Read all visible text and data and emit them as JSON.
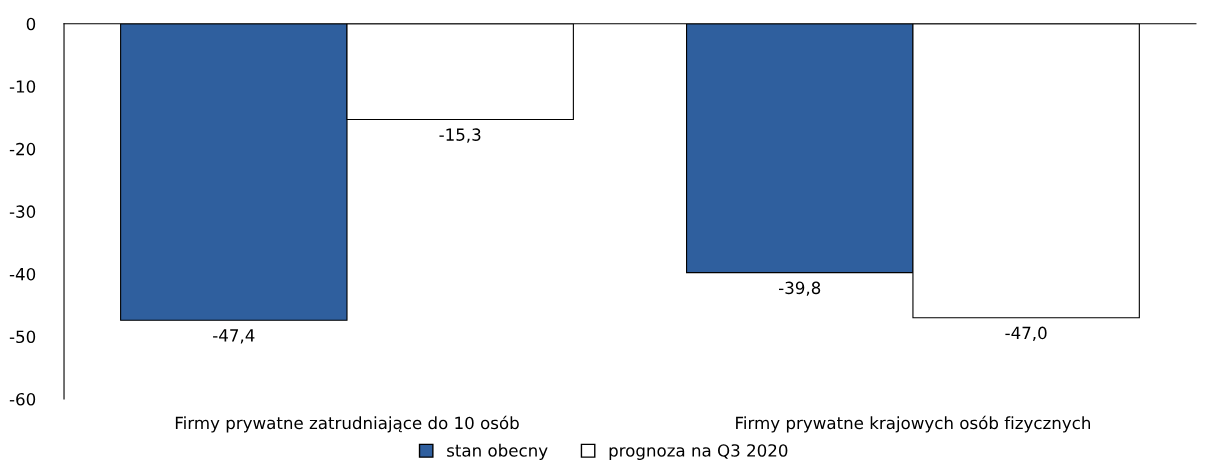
{
  "chart_data": {
    "type": "bar",
    "categories": [
      "Firmy prywatne zatrudniające do 10 osób",
      "Firmy prywatne krajowych osób fizycznych"
    ],
    "series": [
      {
        "name": "stan obecny",
        "color": "#2f5f9e",
        "values": [
          -47.4,
          -39.8
        ],
        "value_labels": [
          "-47,4",
          "-39,8"
        ]
      },
      {
        "name": "prognoza na Q3 2020",
        "color": "#ffffff",
        "values": [
          -15.3,
          -47.0
        ],
        "value_labels": [
          "-15,3",
          "-47,0"
        ]
      }
    ],
    "ylim": [
      -60,
      0
    ],
    "yticks": [
      -60,
      -50,
      -40,
      -30,
      -20,
      -10,
      0
    ],
    "grid": false,
    "legend": "bottom"
  }
}
